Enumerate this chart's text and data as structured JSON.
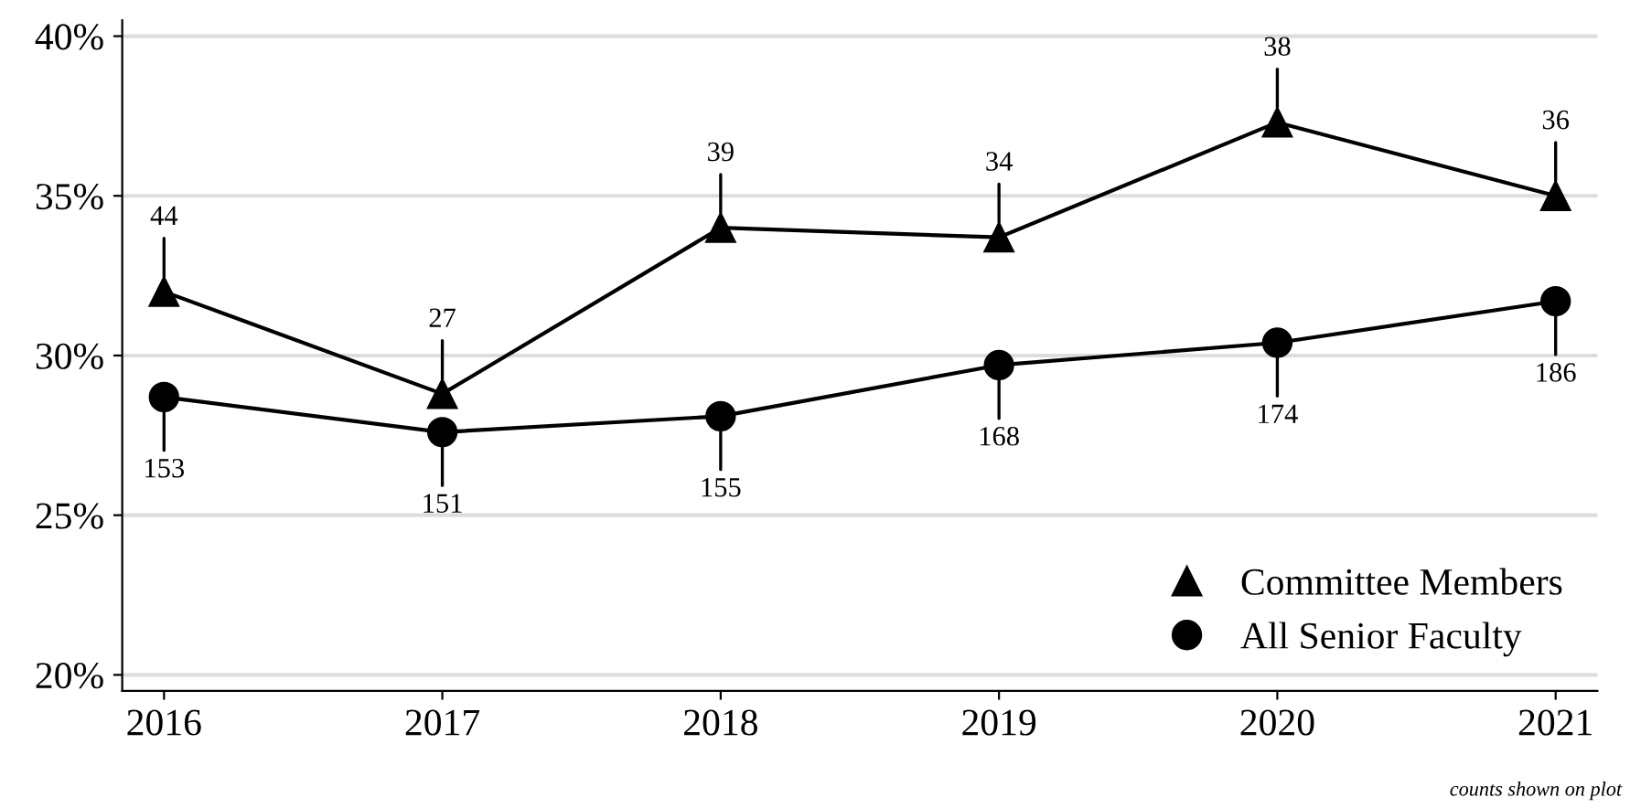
{
  "chart_data": {
    "type": "line",
    "categories": [
      "2016",
      "2017",
      "2018",
      "2019",
      "2020",
      "2021"
    ],
    "series": [
      {
        "name": "Committee Members",
        "color": "#000000",
        "marker": "triangle",
        "values": [
          32.0,
          28.8,
          34.0,
          33.7,
          37.3,
          35.0
        ]
      },
      {
        "name": "All Senior Faculty",
        "color": "#000000",
        "marker": "circle",
        "values": [
          28.7,
          27.6,
          28.1,
          29.7,
          30.4,
          31.7
        ]
      }
    ],
    "ylim": [
      19.5,
      40.5
    ],
    "yticks": [
      {
        "value": 20,
        "label": "20%"
      },
      {
        "value": 25,
        "label": "25%"
      },
      {
        "value": 30,
        "label": "30%"
      },
      {
        "value": 35,
        "label": "35%"
      },
      {
        "value": 40,
        "label": "40%"
      }
    ],
    "grid": "y",
    "legend": "bottom right",
    "line_style": "solid",
    "annotations": [
      {
        "text": "44",
        "x": "2016",
        "y": 32.0
      },
      {
        "text": "27",
        "x": "2017",
        "y": 28.8
      },
      {
        "text": "39",
        "x": "2018",
        "y": 34.0
      },
      {
        "text": "34",
        "x": "2019",
        "y": 33.7
      },
      {
        "text": "38",
        "x": "2020",
        "y": 37.3
      },
      {
        "text": "36",
        "x": "2021",
        "y": 35.0
      },
      {
        "text": "153",
        "x": "2016",
        "y": 28.7
      },
      {
        "text": "151",
        "x": "2017",
        "y": 27.6
      },
      {
        "text": "155",
        "x": "2018",
        "y": 28.1
      },
      {
        "text": "168",
        "x": "2019",
        "y": 29.7
      },
      {
        "text": "174",
        "x": "2020",
        "y": 30.4
      },
      {
        "text": "186",
        "x": "2021",
        "y": 31.7
      },
      "counts shown on plot"
    ]
  }
}
